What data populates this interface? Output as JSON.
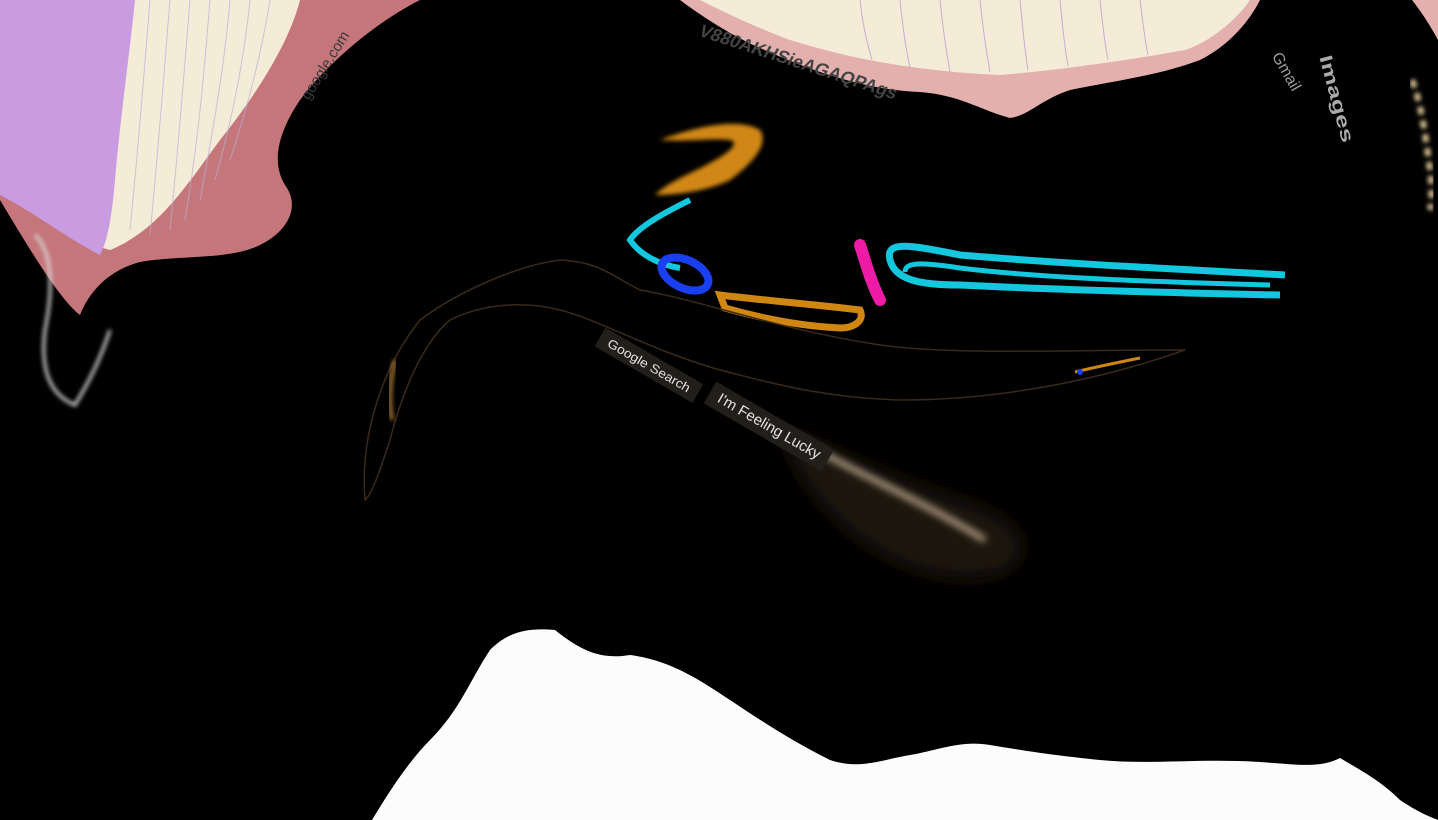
{
  "tab": {
    "url_text": "google.com",
    "tab_code": "V880AKHSieAGAQPAgs"
  },
  "header": {
    "gmail_label": "Gmail",
    "images_label": "Images"
  },
  "logo": {
    "alt": "Google",
    "colors": [
      "#4285F4",
      "#EA4335",
      "#FBBC05",
      "#4285F4",
      "#34A853",
      "#EA4335"
    ]
  },
  "search": {
    "google_search_label": "Google Search",
    "feeling_lucky_label": "I'm Feeling Lucky"
  },
  "colors": {
    "background": "#000000",
    "tab_pink": "#c5767a",
    "tab_lilac": "#c99be0",
    "cyan": "#13c7df",
    "orange": "#d08712",
    "magenta": "#ee1ba6",
    "blue": "#1a3ff0"
  }
}
